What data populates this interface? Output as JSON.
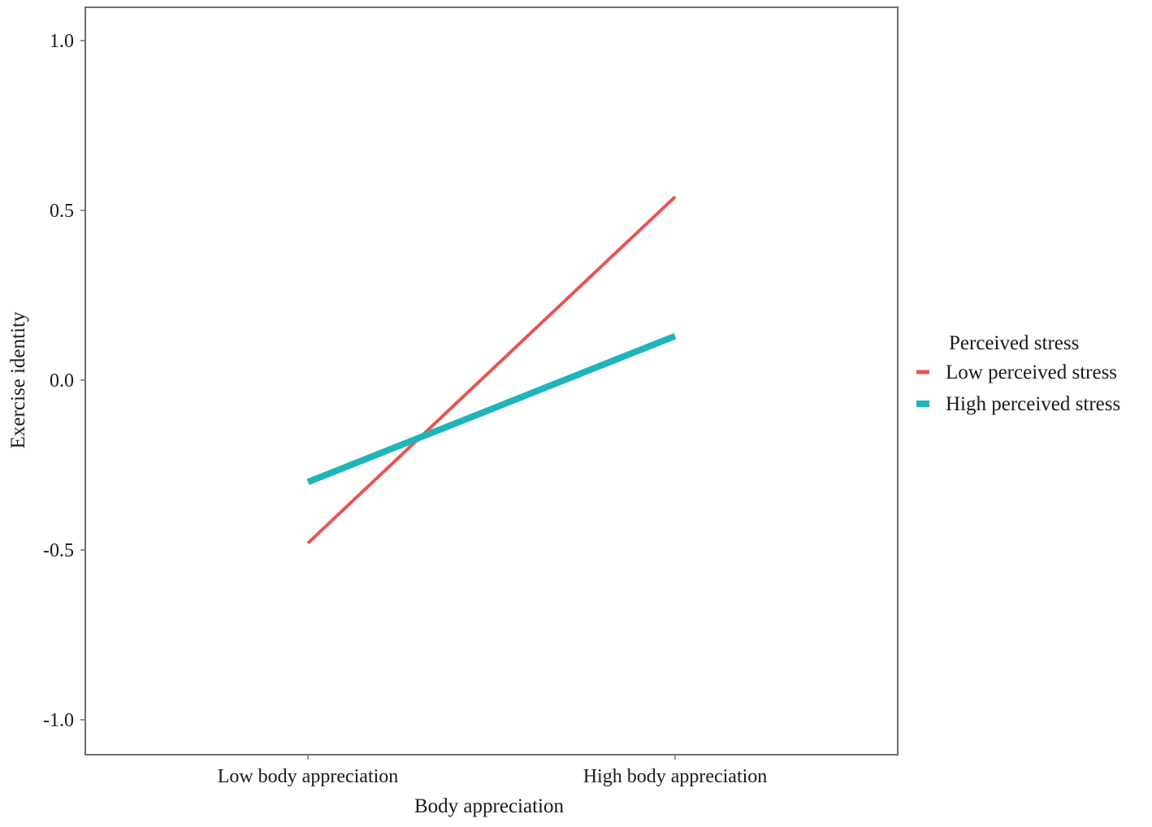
{
  "chart_data": {
    "type": "line",
    "title": "",
    "xlabel": "Body appreciation",
    "ylabel": "Exercise identity",
    "categories": [
      "Low body appreciation",
      "High body appreciation"
    ],
    "ylim": [
      -1.1,
      1.1
    ],
    "yticks": [
      -1.0,
      -0.5,
      0.0,
      0.5,
      1.0
    ],
    "ytick_labels": [
      "-1.0",
      "-0.5",
      "0.0",
      "0.5",
      "1.0"
    ],
    "grid": false,
    "legend": {
      "title": "Perceived stress",
      "placement": "right"
    },
    "series": [
      {
        "name": "Low perceived stress",
        "color": "#e8544e",
        "values": [
          -0.48,
          0.54
        ]
      },
      {
        "name": "High perceived stress",
        "color": "#1fb5b8",
        "values": [
          -0.3,
          0.13
        ]
      }
    ]
  }
}
